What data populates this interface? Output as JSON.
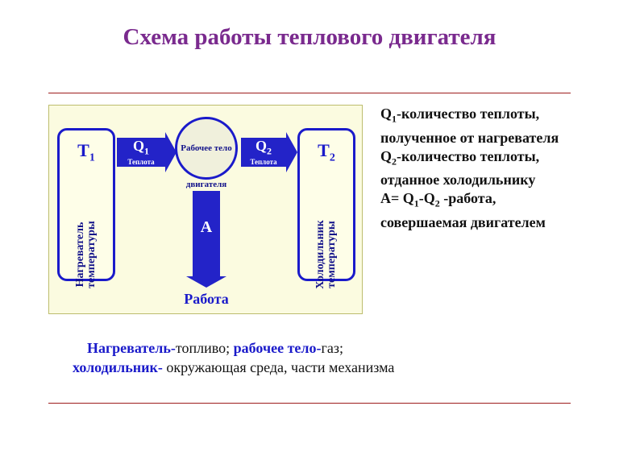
{
  "colors": {
    "title": "#7a2a8e",
    "accent": "#1a1aca",
    "arrow": "#2323c8",
    "diagram_bg": "#fbfbe0",
    "hr": "#9d1c1c"
  },
  "title": "Схема работы теплового двигателя",
  "diagram": {
    "heater": {
      "symbol": "T",
      "sub": "1",
      "vtext1": "Нагреватель",
      "vtext2": "температуры"
    },
    "cooler": {
      "symbol": "T",
      "sub": "2",
      "vtext1": "Холодильник",
      "vtext2": "температуры"
    },
    "circle": "Рабочее тело",
    "circle2": "двигателя",
    "q1": {
      "sym": "Q",
      "sub": "1",
      "label": "Теплота"
    },
    "q2": {
      "sym": "Q",
      "sub": "2",
      "label": "Теплота"
    },
    "a": "A",
    "work": "Работа"
  },
  "legend": {
    "q1a": "Q",
    "q1s": "1",
    "q1b": "-количество теплоты, полученное  от нагревателя",
    "q2a": "Q",
    "q2s": "2",
    "q2b": "-количество теплоты, отданное холодильнику",
    "aa": "A= Q",
    "a1": "1",
    "amid": "-Q",
    "a2": "2",
    "ab": " -работа, совершаемая двигателем"
  },
  "foot": {
    "h": "Нагреватель-",
    "ht": "топливо;   ",
    "w": "рабочее тело-",
    "wt": "газ;",
    "c": "холодильник-",
    "ct": " окружающая среда, части   механизма"
  }
}
